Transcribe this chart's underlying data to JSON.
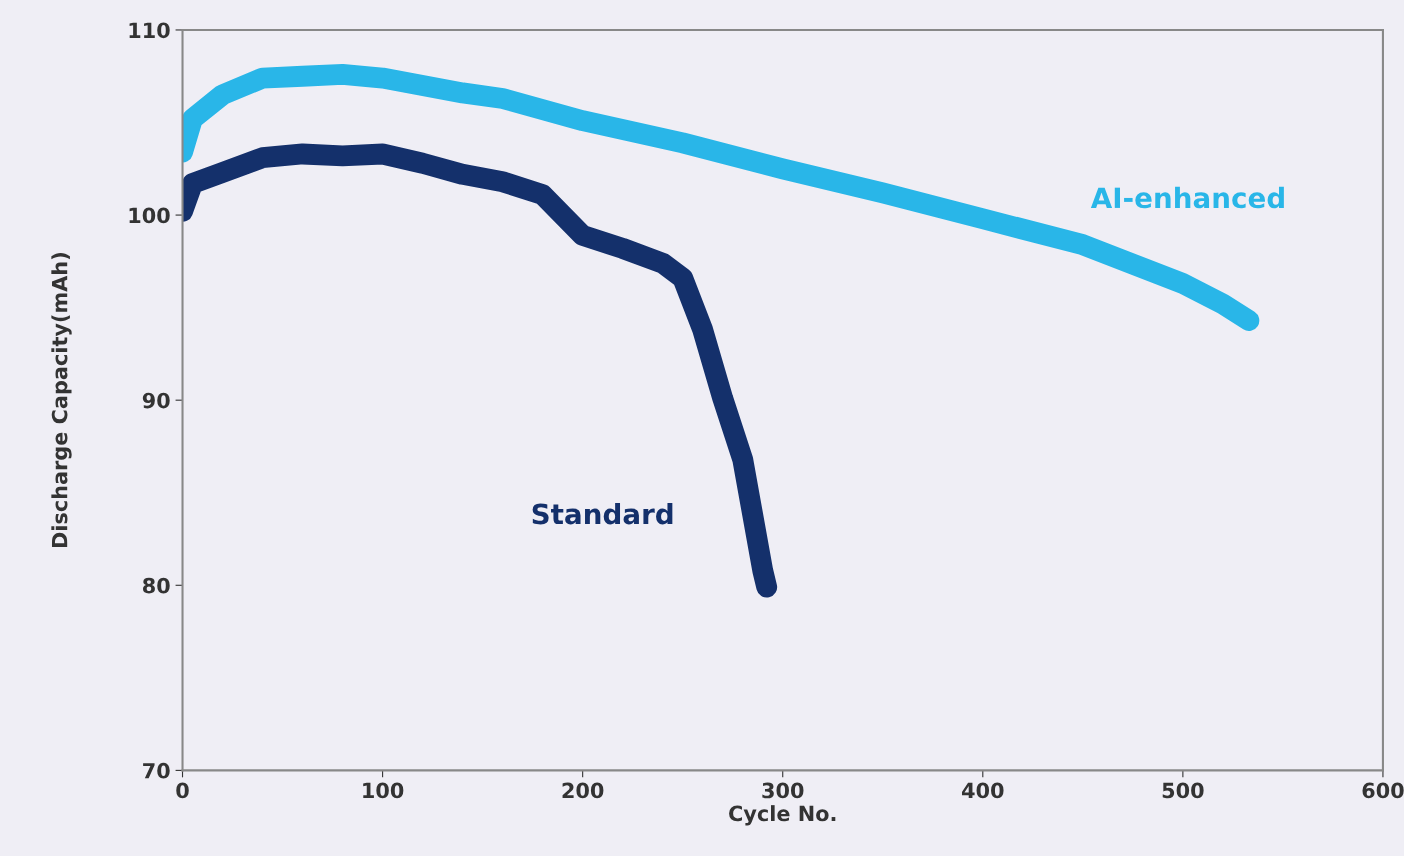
{
  "chart_data": {
    "type": "line",
    "xlabel": "Cycle No.",
    "ylabel": "Discharge Capacity(mAh)",
    "xlim": [
      0,
      600
    ],
    "xticks": [
      0,
      100,
      200,
      300,
      400,
      500,
      600
    ],
    "ylim": [
      70,
      110
    ],
    "yticks": [
      70,
      80,
      90,
      100,
      110
    ],
    "grid": false,
    "legend": false,
    "line_style": "solid",
    "series": [
      {
        "name": "AI-enhanced",
        "color": "#29b6e8",
        "x": [
          0,
          5,
          20,
          40,
          60,
          80,
          100,
          120,
          140,
          160,
          200,
          250,
          300,
          350,
          400,
          450,
          500,
          520,
          533
        ],
        "values": [
          103.4,
          105.2,
          106.5,
          107.4,
          107.5,
          107.6,
          107.4,
          107.0,
          106.6,
          106.3,
          105.1,
          103.9,
          102.5,
          101.2,
          99.8,
          98.4,
          96.3,
          95.2,
          94.3
        ]
      },
      {
        "name": "Standard",
        "color": "#14306b",
        "x": [
          0,
          5,
          20,
          40,
          60,
          80,
          100,
          120,
          140,
          160,
          180,
          200,
          220,
          240,
          250,
          260,
          270,
          280,
          290,
          292
        ],
        "values": [
          100.2,
          101.7,
          102.3,
          103.1,
          103.3,
          103.2,
          103.3,
          102.8,
          102.2,
          101.8,
          101.1,
          98.9,
          98.2,
          97.4,
          96.6,
          93.8,
          90.1,
          86.8,
          80.8,
          79.9
        ]
      }
    ]
  }
}
